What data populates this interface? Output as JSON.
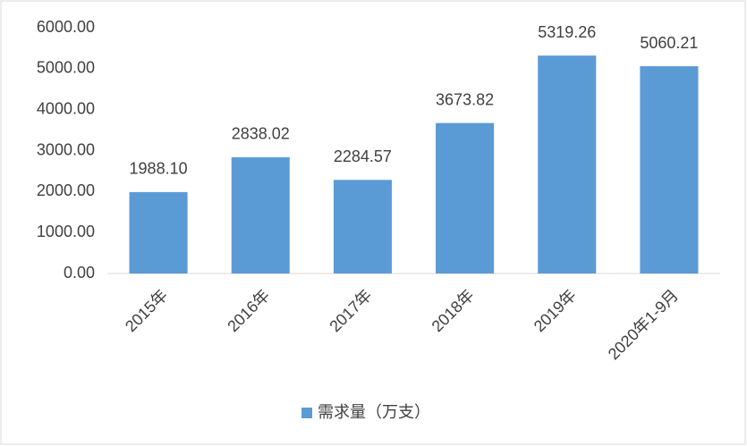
{
  "chart_data": {
    "type": "bar",
    "categories": [
      "2015年",
      "2016年",
      "2017年",
      "2018年",
      "2019年",
      "2020年1-9月"
    ],
    "series": [
      {
        "name": "需求量（万支）",
        "color": "#5b9bd5",
        "values": [
          1988.1,
          2838.02,
          2284.57,
          3673.82,
          5319.26,
          5060.21
        ],
        "value_labels": [
          "1988.10",
          "2838.02",
          "2284.57",
          "3673.82",
          "5319.26",
          "5060.21"
        ]
      }
    ],
    "ylim": [
      0,
      6000
    ],
    "yticks": [
      {
        "value": 0,
        "label": "0.00"
      },
      {
        "value": 1000,
        "label": "1000.00"
      },
      {
        "value": 2000,
        "label": "2000.00"
      },
      {
        "value": 3000,
        "label": "3000.00"
      },
      {
        "value": 4000,
        "label": "4000.00"
      },
      {
        "value": 5000,
        "label": "5000.00"
      },
      {
        "value": 6000,
        "label": "6000.00"
      }
    ],
    "grid": false,
    "legend": "bottom"
  }
}
